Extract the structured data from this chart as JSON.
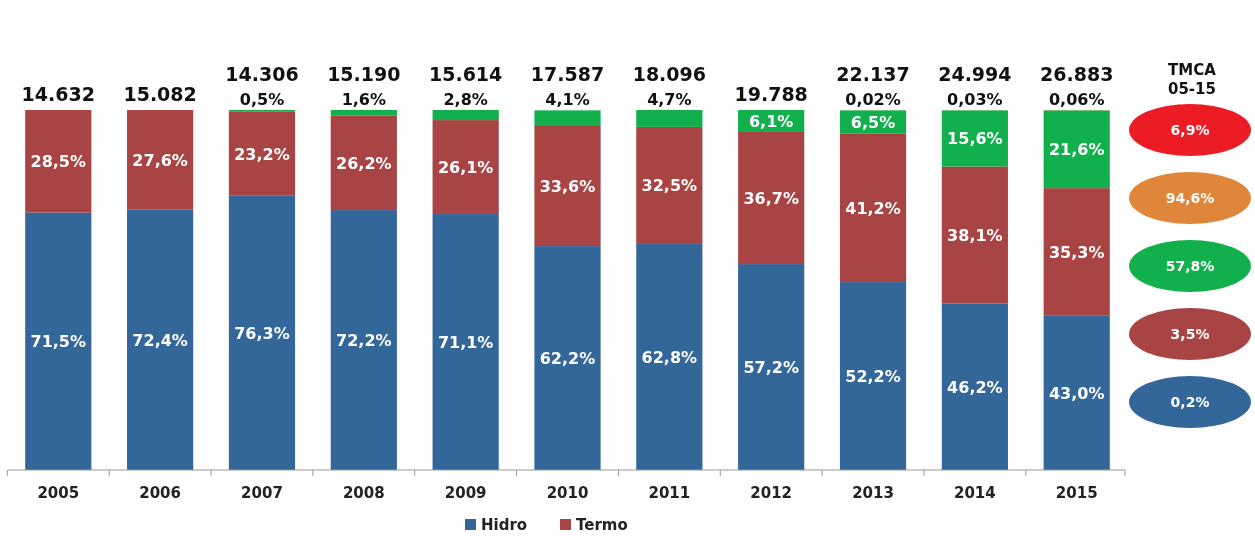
{
  "chart_data": {
    "type": "bar",
    "stacked": true,
    "legend": "bottom",
    "categories": [
      "2005",
      "2006",
      "2007",
      "2008",
      "2009",
      "2010",
      "2011",
      "2012",
      "2013",
      "2014",
      "2015"
    ],
    "series": [
      {
        "name": "Hidro",
        "color": "#336699",
        "values": [
          71.5,
          72.4,
          76.3,
          72.2,
          71.1,
          62.2,
          62.8,
          57.2,
          52.2,
          46.2,
          43.0
        ],
        "value_labels": [
          "71,5%",
          "72,4%",
          "76,3%",
          "72,2%",
          "71,1%",
          "62,2%",
          "62,8%",
          "57,2%",
          "52,2%",
          "46,2%",
          "43,0%"
        ]
      },
      {
        "name": "Termo",
        "color": "#a84444",
        "values": [
          28.5,
          27.6,
          23.2,
          26.2,
          26.1,
          33.6,
          32.5,
          36.7,
          41.2,
          38.1,
          35.3
        ],
        "value_labels": [
          "28,5%",
          "27,6%",
          "23,2%",
          "26,2%",
          "26,1%",
          "33,6%",
          "32,5%",
          "36,7%",
          "41,2%",
          "38,1%",
          "35,3%"
        ]
      },
      {
        "color": "#12b04c",
        "values": [
          null,
          null,
          0.5,
          1.6,
          2.8,
          4.1,
          4.7,
          6.1,
          6.5,
          15.6,
          21.6
        ],
        "value_labels": [
          null,
          null,
          "0,5%",
          "1,6%",
          "2,8%",
          "4,1%",
          "4,7%",
          "6,1%",
          "6,5%",
          "15,6%",
          "21,6%"
        ]
      },
      {
        "color": "#e0863a",
        "values": [
          null,
          null,
          null,
          null,
          null,
          null,
          null,
          null,
          0.02,
          0.03,
          0.06
        ],
        "value_labels": [
          null,
          null,
          null,
          null,
          null,
          null,
          null,
          null,
          "0,02%",
          "0,03%",
          "0,06%"
        ]
      }
    ],
    "annotations": [
      "14.632",
      "15.082",
      "14.306",
      "15.190",
      "15.614",
      "17.587",
      "18.096",
      "19.788",
      "22.137",
      "24.994",
      "26.883",
      "TMCA 05-15",
      "6,9%",
      "94,6%",
      "57,8%",
      "3,5%",
      "0,2%"
    ]
  }
}
